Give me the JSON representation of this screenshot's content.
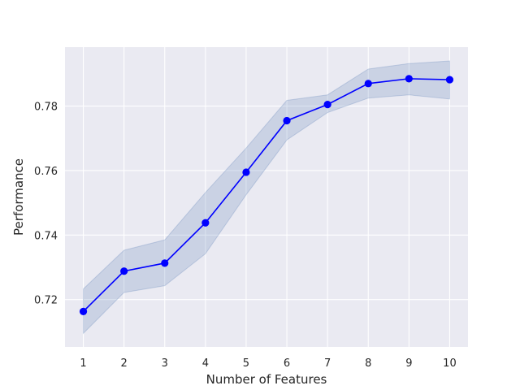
{
  "chart_data": {
    "type": "line",
    "title": "",
    "xlabel": "Number of Features",
    "ylabel": "Performance",
    "x": [
      1,
      2,
      3,
      4,
      5,
      6,
      7,
      8,
      9,
      10
    ],
    "xlim": [
      0.55,
      10.45
    ],
    "ylim": [
      0.7053,
      0.7983
    ],
    "xticks": [
      1,
      2,
      3,
      4,
      5,
      6,
      7,
      8,
      9,
      10
    ],
    "yticks": [
      0.72,
      0.74,
      0.76,
      0.78
    ],
    "ytick_labels": [
      "0.72",
      "0.74",
      "0.76",
      "0.78"
    ],
    "grid": true,
    "series": [
      {
        "values": [
          0.7163,
          0.7288,
          0.7313,
          0.7438,
          0.7595,
          0.7755,
          0.7805,
          0.787,
          0.7885,
          0.7882
        ],
        "lower": [
          0.7095,
          0.7222,
          0.7243,
          0.7342,
          0.7525,
          0.7695,
          0.778,
          0.7825,
          0.7835,
          0.7822
        ],
        "upper": [
          0.7233,
          0.7353,
          0.7385,
          0.7532,
          0.767,
          0.7818,
          0.7835,
          0.7915,
          0.7932,
          0.794
        ],
        "color": "#0000ff",
        "band_color": "#4c72b0"
      }
    ],
    "colors": {
      "plot_background": "#eaeaf2",
      "grid": "#ffffff"
    }
  }
}
